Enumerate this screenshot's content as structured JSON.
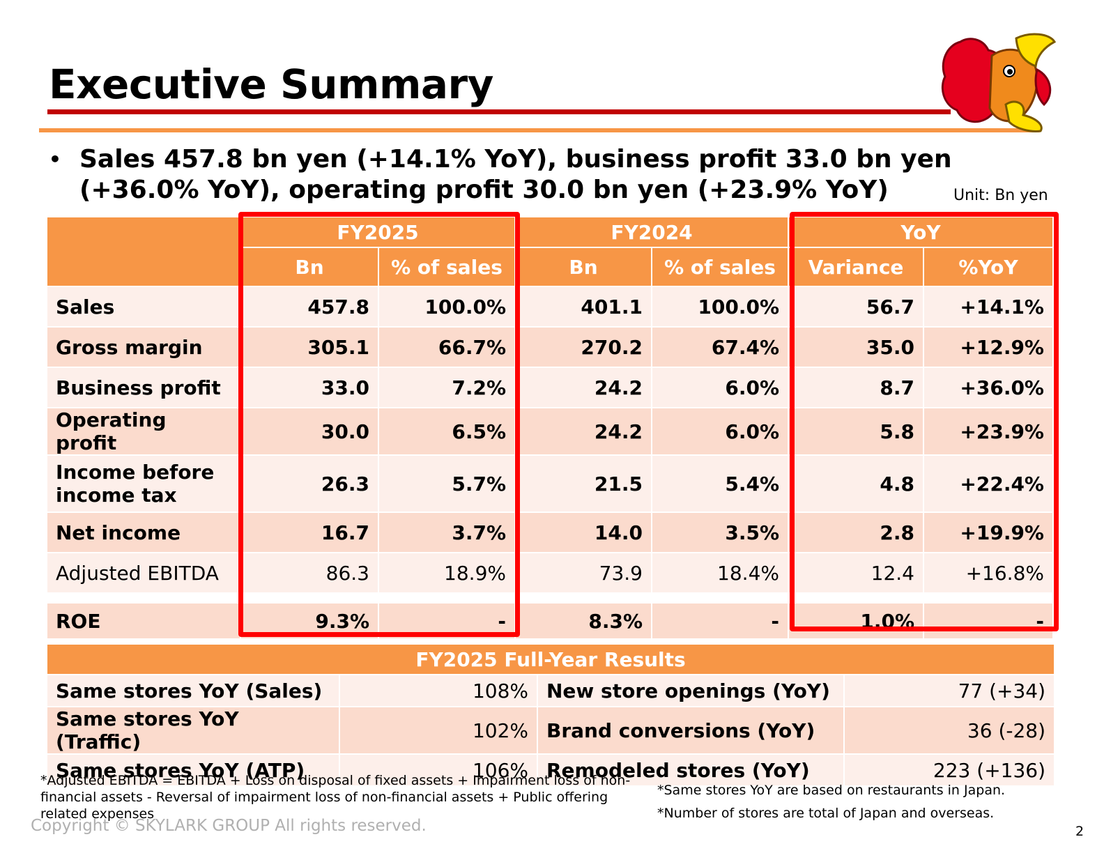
{
  "header": {
    "title": "Executive Summary",
    "mascot_icon": "mascot-chicken-icon"
  },
  "summary": {
    "bullet": "•",
    "text": "Sales 457.8 bn yen (+14.1% YoY), business profit 33.0 bn yen (+36.0% YoY), operating profit 30.0 bn yen (+23.9% YoY)",
    "unit": "Unit: Bn yen"
  },
  "table": {
    "groups": [
      "FY2025",
      "FY2024",
      "YoY"
    ],
    "subheaders": [
      "Bn",
      "% of sales",
      "Bn",
      "% of sales",
      "Variance",
      "%YoY"
    ],
    "rows": [
      {
        "label": "Sales",
        "values": [
          "457.8",
          "100.0%",
          "401.1",
          "100.0%",
          "56.7",
          "+14.1%"
        ]
      },
      {
        "label": "Gross margin",
        "values": [
          "305.1",
          "66.7%",
          "270.2",
          "67.4%",
          "35.0",
          "+12.9%"
        ]
      },
      {
        "label": "Business profit",
        "values": [
          "33.0",
          "7.2%",
          "24.2",
          "6.0%",
          "8.7",
          "+36.0%"
        ]
      },
      {
        "label": "Operating profit",
        "values": [
          "30.0",
          "6.5%",
          "24.2",
          "6.0%",
          "5.8",
          "+23.9%"
        ]
      },
      {
        "label": "Income before income tax",
        "values": [
          "26.3",
          "5.7%",
          "21.5",
          "5.4%",
          "4.8",
          "+22.4%"
        ]
      },
      {
        "label": "Net income",
        "values": [
          "16.7",
          "3.7%",
          "14.0",
          "3.5%",
          "2.8",
          "+19.9%"
        ]
      },
      {
        "label": "Adjusted EBITDA",
        "values": [
          "86.3",
          "18.9%",
          "73.9",
          "18.4%",
          "12.4",
          "+16.8%"
        ]
      },
      {
        "label": "ROE",
        "values": [
          "9.3%",
          "-",
          "8.3%",
          "-",
          "1.0%",
          "-"
        ]
      }
    ]
  },
  "results": {
    "title": "FY2025 Full-Year Results",
    "rows": [
      {
        "left_label": "Same stores YoY (Sales)",
        "left_value": "108%",
        "right_label": "New store openings (YoY)",
        "right_value": "77 (+34)"
      },
      {
        "left_label": "Same stores YoY (Traffic)",
        "left_value": "102%",
        "right_label": "Brand conversions (YoY)",
        "right_value": "36 (-28)"
      },
      {
        "left_label": "Same stores YoY (ATP)",
        "left_value": "106%",
        "right_label": "Remodeled stores (YoY)",
        "right_value": "223 (+136)"
      }
    ]
  },
  "footnotes": {
    "ebitda": "*Adjusted EBITDA = EBITDA + Loss on disposal of fixed assets + Impairment loss of non-financial assets - Reversal of impairment loss of non-financial assets + Public offering related expenses",
    "same_stores": "*Same stores YoY are based on restaurants in Japan.",
    "stores_total": "*Number of stores are total of Japan and overseas."
  },
  "footer": {
    "copyright": "Copyright © SKYLARK GROUP All rights reserved.",
    "page": "2"
  },
  "colors": {
    "header_orange": "#f79646",
    "row_light": "#fdefea",
    "row_dark": "#fbdbcd",
    "highlight_red": "#ff0000",
    "title_rule": "#c00000"
  }
}
